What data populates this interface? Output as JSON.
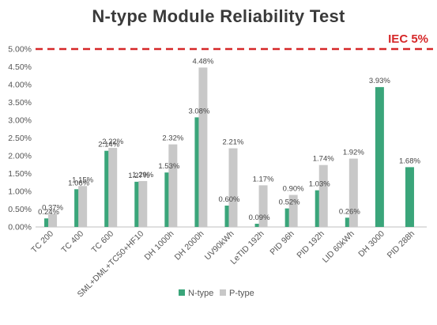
{
  "chart_data": {
    "type": "bar",
    "title": "N-type Module Reliability Test",
    "xlabel": "",
    "ylabel": "",
    "ylim": [
      0,
      5
    ],
    "y_ticks": [
      "0.00%",
      "0.50%",
      "1.00%",
      "1.50%",
      "2.00%",
      "2.50%",
      "3.00%",
      "3.50%",
      "4.00%",
      "4.50%",
      "5.00%"
    ],
    "categories": [
      "TC 200",
      "TC 400",
      "TC 600",
      "SML+DML+TC50+HF10",
      "DH 1000h",
      "DH 2000h",
      "UV90kWh",
      "LeTID 192h",
      "PID 96h",
      "PID 192h",
      "LID 60kWh",
      "DH 3000",
      "PID 288h"
    ],
    "series": [
      {
        "name": "N-type",
        "color": "#3aa57a",
        "values": [
          0.24,
          1.06,
          2.14,
          1.27,
          1.53,
          3.08,
          0.6,
          0.09,
          0.52,
          1.03,
          0.26,
          3.93,
          1.68
        ],
        "labels": [
          "0.24%",
          "1.06%",
          "2.14%",
          "1.27%",
          "1.53%",
          "3.08%",
          "0.60%",
          "0.09%",
          "0.52%",
          "1.03%",
          "0.26%",
          "3.93%",
          "1.68%"
        ]
      },
      {
        "name": "P-type",
        "color": "#c8c8c8",
        "values": [
          0.37,
          1.15,
          2.22,
          1.29,
          2.32,
          4.48,
          2.21,
          1.17,
          0.9,
          1.74,
          1.92,
          null,
          null
        ],
        "labels": [
          "0.37%",
          "1.15%",
          "2.22%",
          "1.29%",
          "2.32%",
          "4.48%",
          "2.21%",
          "1.17%",
          "0.90%",
          "1.74%",
          "1.92%",
          null,
          null
        ]
      }
    ],
    "reference_line": {
      "value": 5,
      "label": "IEC 5%",
      "color": "#d62728",
      "style": "dashed"
    },
    "grid": false,
    "legend": "bottom"
  }
}
